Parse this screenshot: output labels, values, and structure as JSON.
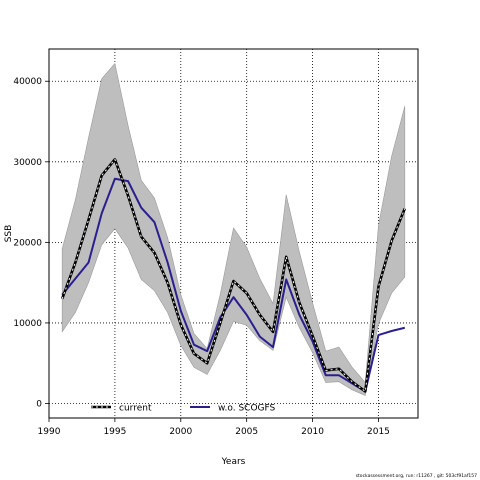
{
  "chart_data": {
    "type": "line",
    "xlabel": "Years",
    "ylabel": "SSB",
    "xlim": [
      1990,
      2018
    ],
    "ylim": [
      -1800,
      44000
    ],
    "xticks": [
      1990,
      1995,
      2000,
      2005,
      2010,
      2015
    ],
    "yticks": [
      0,
      10000,
      20000,
      30000,
      40000
    ],
    "grid": true,
    "legend_position": "bottom",
    "x": [
      1991,
      1992,
      1993,
      1994,
      1995,
      1996,
      1997,
      1998,
      1999,
      2000,
      2001,
      2002,
      2003,
      2004,
      2005,
      2006,
      2007,
      2008,
      2009,
      2010,
      2011,
      2012,
      2013,
      2014,
      2015,
      2016,
      2017
    ],
    "series": [
      {
        "name": "current",
        "color": "#000000",
        "values": [
          13000,
          17500,
          22800,
          28300,
          30300,
          25800,
          20700,
          18700,
          15000,
          9800,
          6200,
          5000,
          10000,
          15200,
          13700,
          11000,
          8900,
          18200,
          12500,
          8400,
          4100,
          4300,
          2700,
          1500,
          14500,
          20200,
          24200
        ]
      },
      {
        "name": "w.o. SCOGFS",
        "color": "#2b1f8f",
        "values": [
          13500,
          15500,
          17500,
          23600,
          27900,
          27600,
          24300,
          22500,
          17500,
          11500,
          7300,
          6500,
          10700,
          13200,
          11000,
          8300,
          7000,
          15400,
          11000,
          7700,
          3500,
          3500,
          2500,
          1500,
          8500,
          9000,
          9400
        ]
      }
    ],
    "band": {
      "color": "#bebebe",
      "lower": [
        8900,
        11300,
        15000,
        19700,
        21700,
        19300,
        15400,
        14000,
        11300,
        7200,
        4500,
        3600,
        6600,
        10200,
        9700,
        7800,
        6600,
        13200,
        9400,
        6300,
        2600,
        2700,
        1700,
        1000,
        9900,
        13700,
        15700
      ],
      "upper": [
        19200,
        25300,
        33000,
        40300,
        42200,
        34500,
        27700,
        25500,
        20600,
        13500,
        8700,
        6800,
        13600,
        21800,
        19400,
        15500,
        12400,
        25900,
        18800,
        12500,
        6500,
        7000,
        4500,
        2600,
        22100,
        30700,
        36900
      ]
    }
  },
  "footer_text": "stockassessment.org, run: r11267 , git: 503cf91af157"
}
